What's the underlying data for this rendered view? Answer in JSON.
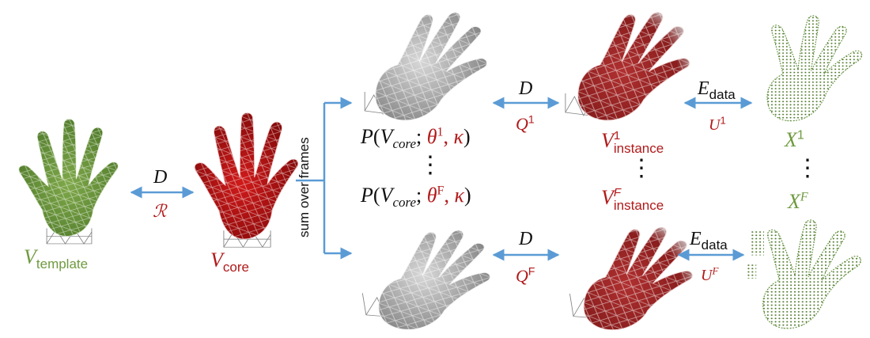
{
  "colors": {
    "template_green": "#6f9a3f",
    "core_red": "#b21a1a",
    "arrow_blue": "#5b9bd5",
    "frame_gray": "#8a8a8a",
    "points_green": "#4f7a2a"
  },
  "labels": {
    "template": {
      "main": "V",
      "sub": "template"
    },
    "core": {
      "main": "V",
      "sub": "core"
    },
    "arrow_template_core": {
      "top": "D",
      "bottom": "ℛ"
    },
    "sum_over_frames": "sum over frames",
    "pose_1": {
      "p": "P",
      "open": "(",
      "v": "V",
      "vsub": "core",
      "semi": ";",
      "theta": "θ",
      "theta_sup": "1",
      "comma": ",",
      "kappa": "κ",
      "close": ")"
    },
    "pose_F": {
      "p": "P",
      "open": "(",
      "v": "V",
      "vsub": "core",
      "semi": ";",
      "theta": "θ",
      "theta_sup": "F",
      "comma": ",",
      "kappa": "κ",
      "close": ")"
    },
    "arrow_pose_inst_1": {
      "top": "D",
      "bottom": "Q",
      "bottom_sup": "1"
    },
    "arrow_pose_inst_F": {
      "top": "D",
      "bottom": "Q",
      "bottom_sup": "F"
    },
    "instance_1": {
      "main": "V",
      "sup": "1",
      "sub": "instance"
    },
    "instance_F": {
      "main": "V",
      "sup": "F",
      "sub": "instance"
    },
    "arrow_inst_data_1": {
      "top_main": "E",
      "top_sub": "data",
      "bottom": "U",
      "bottom_sup": "1"
    },
    "arrow_inst_data_F": {
      "top_main": "E",
      "top_sub": "data",
      "bottom": "U",
      "bottom_sup": "F"
    },
    "data_1": {
      "main": "X",
      "sup": "1"
    },
    "data_F": {
      "main": "X",
      "sup": "F"
    },
    "ellipsis": "⋮"
  },
  "icons": {
    "template_hand": "hand-mesh-green-icon",
    "core_hand": "hand-mesh-red-icon",
    "posed_hand": "hand-mesh-gray-icon",
    "instance_hand": "hand-mesh-darkred-icon",
    "data_hand": "hand-pointcloud-icon"
  }
}
